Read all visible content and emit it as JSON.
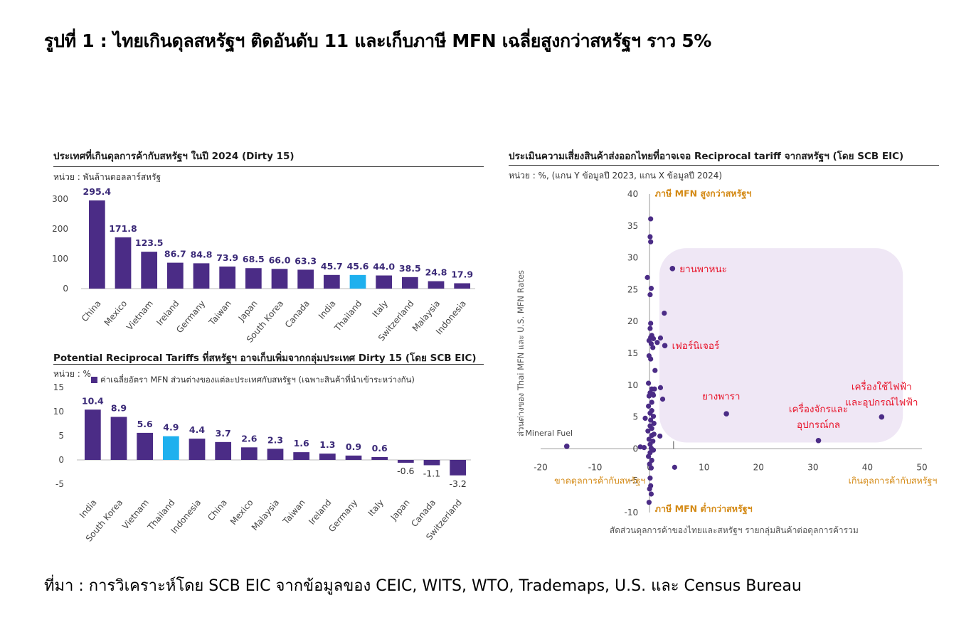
{
  "figure": {
    "title": "รูปที่ 1 : ไทยเกินดุลสหรัฐฯ ติดอันดับ 11 และเก็บภาษี MFN เฉลี่ยสูงกว่าสหรัฐฯ ราว 5%",
    "source": "ที่มา : การวิเคราะห์โดย SCB EIC จากข้อมูลของ CEIC, WITS, WTO, Trademaps, U.S. และ Census Bureau"
  },
  "colors": {
    "bar": "#4b2c86",
    "highlight": "#1eb0ee",
    "label": "#3b2a78",
    "highlight_box": "#efe7f5",
    "orange": "#d48a16",
    "red": "#e8142a"
  },
  "chart_data": [
    {
      "type": "bar",
      "title": "ประเทศที่เกินดุลการค้ากับสหรัฐฯ ในปี 2024 (Dirty 15)",
      "unit": "หน่วย : พันล้านดอลลาร์สหรัฐ",
      "categories": [
        "China",
        "Mexico",
        "Vietnam",
        "Ireland",
        "Germany",
        "Taiwan",
        "Japan",
        "South Korea",
        "Canada",
        "India",
        "Thailand",
        "Italy",
        "Switzerland",
        "Malaysia",
        "Indonesia"
      ],
      "values": [
        295.4,
        171.8,
        123.5,
        86.7,
        84.8,
        73.9,
        68.5,
        66.0,
        63.3,
        45.7,
        45.6,
        44.0,
        38.5,
        24.8,
        17.9
      ],
      "value_labels": [
        "295.4",
        "171.8",
        "123.5",
        "86.7",
        "84.8",
        "73.9",
        "68.5",
        "66.0",
        "63.3",
        "45.7",
        "45.6",
        "44.0",
        "38.5",
        "24.8",
        "17.9"
      ],
      "highlight": "Thailand",
      "yticks": [
        "300",
        "200",
        "100",
        "0"
      ],
      "ylim": [
        0,
        300
      ]
    },
    {
      "type": "bar",
      "title": "Potential Reciprocal Tariffs ที่สหรัฐฯ อาจเก็บเพิ่มจากกลุ่มประเทศ  Dirty 15 (โดย SCB EIC)",
      "unit": "หน่วย : %",
      "legend": "ค่าเฉลี่ยอัตรา MFN ส่วนต่างของแต่ละประเทศกับสหรัฐฯ (เฉพาะสินค้าที่นำเข้าระหว่างกัน)",
      "categories": [
        "India",
        "South Korea",
        "Vietnam",
        "Thailand",
        "Indonesia",
        "China",
        "Mexico",
        "Malaysia",
        "Taiwan",
        "Ireland",
        "Germany",
        "Italy",
        "Japan",
        "Canada",
        "Switzerland"
      ],
      "values": [
        10.4,
        8.9,
        5.6,
        4.9,
        4.4,
        3.7,
        2.6,
        2.3,
        1.6,
        1.3,
        0.9,
        0.6,
        -0.6,
        -1.1,
        -3.2
      ],
      "value_labels": [
        "10.4",
        "8.9",
        "5.6",
        "4.9",
        "4.4",
        "3.7",
        "2.6",
        "2.3",
        "1.6",
        "1.3",
        "0.9",
        "0.6",
        "-0.6",
        "-1.1",
        "-3.2"
      ],
      "highlight": "Thailand",
      "yticks": [
        "15",
        "10",
        "5",
        "0",
        "-5"
      ],
      "ylim": [
        -5,
        15
      ]
    },
    {
      "type": "scatter",
      "title": "ประเมินความเสี่ยงสินค้าส่งออกไทยที่อาจเจอ  Reciprocal tariff จากสหรัฐฯ (โดย SCB EIC)",
      "unit": "หน่วย : %, (แกน Y ข้อมูลปี 2023, แกน X ข้อมูลปี 2024)",
      "ylabel": "ส่วนต่างของ Thai MFN และ U.S. MFN Rates",
      "xlabel": "สัดส่วนดุลการค้าของไทยและสหรัฐฯ รายกลุ่มสินค้าต่อดุลการค้ารวม",
      "xlim": [
        -20,
        50
      ],
      "ylim": [
        -10,
        40
      ],
      "xticks": [
        "-20",
        "-10",
        "0",
        "10",
        "20",
        "30",
        "40",
        "50"
      ],
      "yticks": [
        "40",
        "35",
        "30",
        "25",
        "20",
        "15",
        "10",
        "5",
        "0",
        "-5",
        "-10"
      ],
      "quadrant_labels": {
        "top": "ภาษี MFN สูงกว่าสหรัฐฯ",
        "bottom": "ภาษี MFN ต่ำกว่าสหรัฐฯ",
        "left": "ขาดดุลการค้ากับสหรัฐฯ",
        "right": "เกินดุลการค้ากับสหรัฐฯ"
      },
      "labeled_points": [
        {
          "label": "ยานพาหนะ",
          "x": 4.2,
          "y": 28.3
        },
        {
          "label": "เฟอร์นิเจอร์",
          "x": 2.8,
          "y": 16.2
        },
        {
          "label": "ยางพารา",
          "x": 14.1,
          "y": 5.5
        },
        {
          "label": "เครื่องจักรและ อุปกรณ์กล",
          "x": 31.0,
          "y": 1.3
        },
        {
          "label": "เครื่องใช้ไฟฟ้า และอุปกรณ์ไฟฟ้า",
          "x": 42.6,
          "y": 5.0
        },
        {
          "label": "Mineral Fuel",
          "x": -15.2,
          "y": 0.4
        }
      ],
      "points": [
        [
          0.2,
          36.1
        ],
        [
          0.1,
          33.3
        ],
        [
          0.2,
          32.5
        ],
        [
          -0.4,
          26.9
        ],
        [
          0.3,
          25.2
        ],
        [
          0.1,
          24.2
        ],
        [
          2.7,
          21.3
        ],
        [
          0.2,
          19.7
        ],
        [
          0.1,
          18.9
        ],
        [
          0.4,
          17.8
        ],
        [
          0.2,
          17.5
        ],
        [
          0.7,
          17.3
        ],
        [
          -0.1,
          17.0
        ],
        [
          2.0,
          17.4
        ],
        [
          1.4,
          16.7
        ],
        [
          0.3,
          16.5
        ],
        [
          0.6,
          15.9
        ],
        [
          -0.1,
          14.6
        ],
        [
          0.2,
          14.1
        ],
        [
          1.0,
          12.3
        ],
        [
          -0.2,
          10.3
        ],
        [
          0.4,
          9.4
        ],
        [
          0.9,
          9.4
        ],
        [
          2.0,
          9.6
        ],
        [
          0.1,
          8.8
        ],
        [
          0.6,
          8.6
        ],
        [
          -0.1,
          8.3
        ],
        [
          0.7,
          8.4
        ],
        [
          2.4,
          7.8
        ],
        [
          0.4,
          7.3
        ],
        [
          -0.2,
          6.7
        ],
        [
          0.4,
          6.0
        ],
        [
          0.1,
          5.6
        ],
        [
          0.7,
          5.1
        ],
        [
          -0.8,
          4.8
        ],
        [
          0.2,
          4.5
        ],
        [
          0.8,
          4.0
        ],
        [
          0.1,
          3.6
        ],
        [
          0.4,
          3.2
        ],
        [
          -0.3,
          2.8
        ],
        [
          0.8,
          2.3
        ],
        [
          0.4,
          2.1
        ],
        [
          1.9,
          2.0
        ],
        [
          -0.1,
          1.5
        ],
        [
          0.6,
          1.2
        ],
        [
          0.1,
          0.7
        ],
        [
          -1.0,
          0.2
        ],
        [
          -1.7,
          0.3
        ],
        [
          0.3,
          0.1
        ],
        [
          0.7,
          -0.2
        ],
        [
          0.1,
          -0.6
        ],
        [
          -0.2,
          -1.2
        ],
        [
          0.4,
          -1.8
        ],
        [
          0.0,
          -2.4
        ],
        [
          0.3,
          -3.0
        ],
        [
          4.6,
          -2.9
        ],
        [
          0.1,
          -4.6
        ],
        [
          0.2,
          -5.8
        ],
        [
          0.0,
          -6.3
        ],
        [
          0.3,
          -7.1
        ],
        [
          -0.1,
          -8.4
        ]
      ]
    }
  ]
}
